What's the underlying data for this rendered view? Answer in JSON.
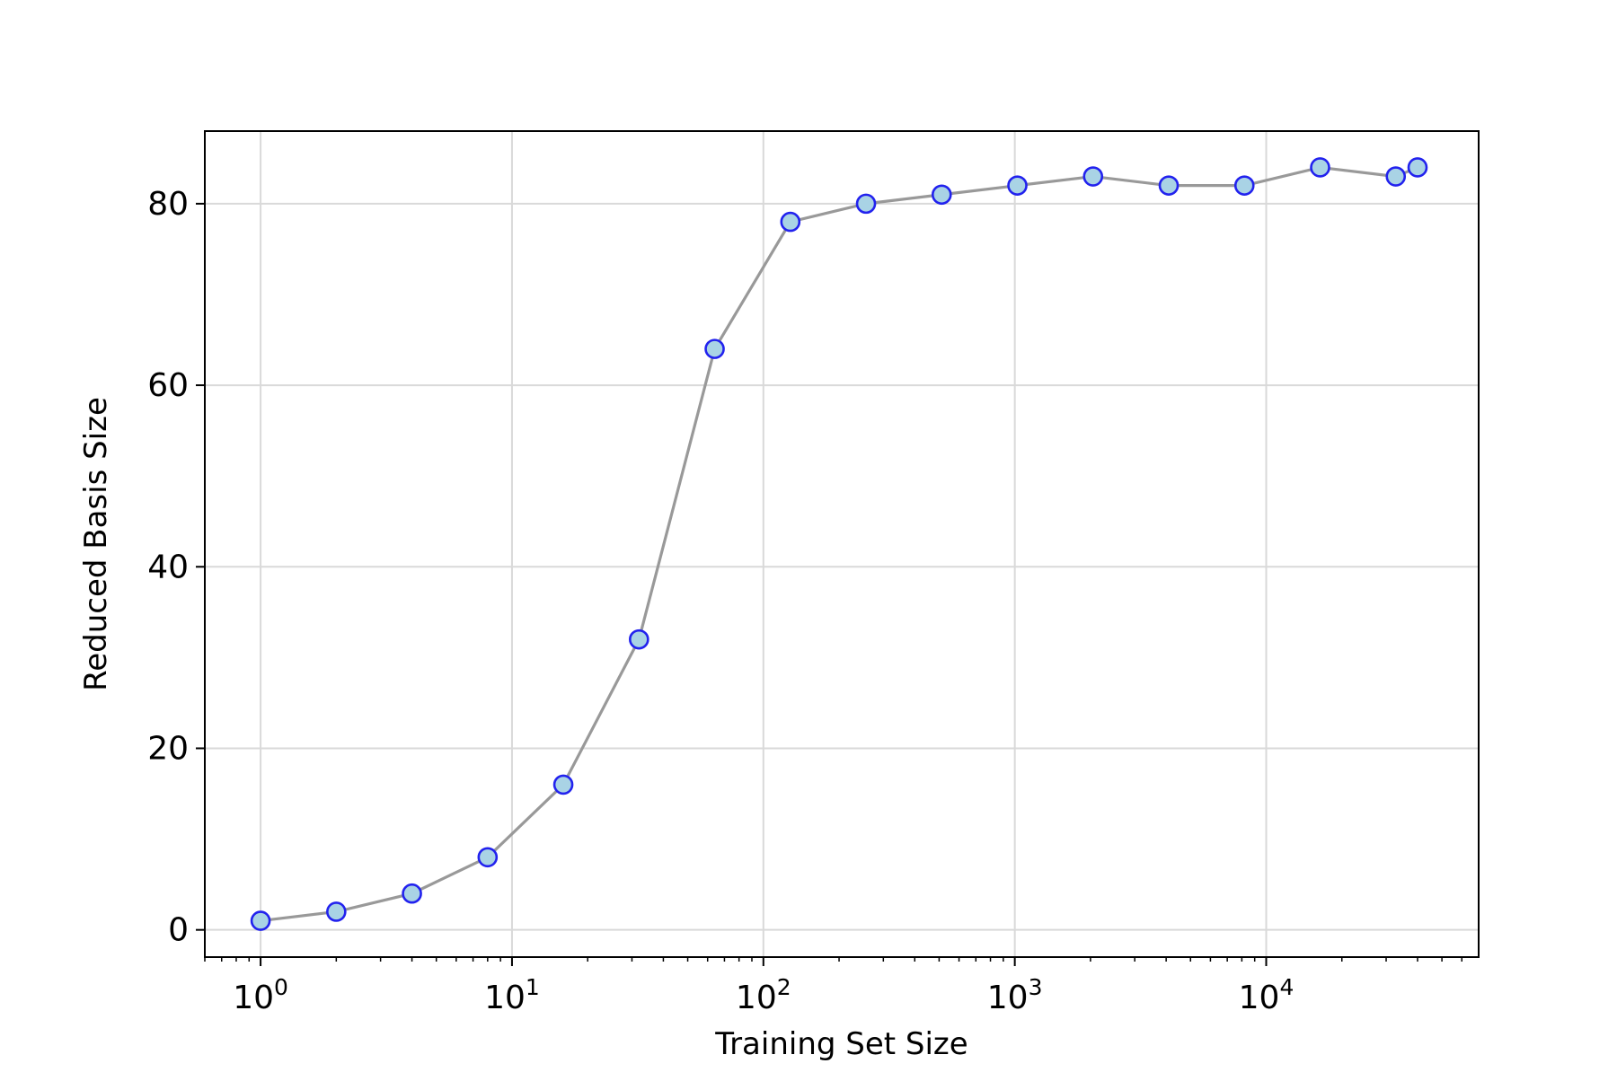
{
  "chart_data": {
    "type": "line",
    "xlabel": "Training Set Size",
    "ylabel": "Reduced Basis Size",
    "x_scale": "log",
    "xlim": [
      0.6,
      70000
    ],
    "ylim": [
      -3,
      88
    ],
    "grid": true,
    "x_ticks": [
      {
        "value": 1,
        "base": "10",
        "exp": "0"
      },
      {
        "value": 10,
        "base": "10",
        "exp": "1"
      },
      {
        "value": 100,
        "base": "10",
        "exp": "2"
      },
      {
        "value": 1000,
        "base": "10",
        "exp": "3"
      },
      {
        "value": 10000,
        "base": "10",
        "exp": "4"
      }
    ],
    "y_ticks": [
      {
        "value": 0,
        "label": "0"
      },
      {
        "value": 20,
        "label": "20"
      },
      {
        "value": 40,
        "label": "40"
      },
      {
        "value": 60,
        "label": "60"
      },
      {
        "value": 80,
        "label": "80"
      }
    ],
    "series": [
      {
        "x": [
          1,
          2,
          4,
          8,
          16,
          32,
          64,
          128,
          256,
          512,
          1024,
          2048,
          4096,
          8192,
          16384,
          32768,
          40000
        ],
        "y": [
          1,
          2,
          4,
          8,
          16,
          32,
          64,
          78,
          80,
          81,
          82,
          83,
          82,
          82,
          84,
          83,
          84
        ]
      }
    ],
    "colors": {
      "line": "#999999",
      "marker_face": "#a9d3e5",
      "marker_edge": "#2222ee",
      "grid": "#d9d9d9",
      "axes": "#000000"
    }
  }
}
